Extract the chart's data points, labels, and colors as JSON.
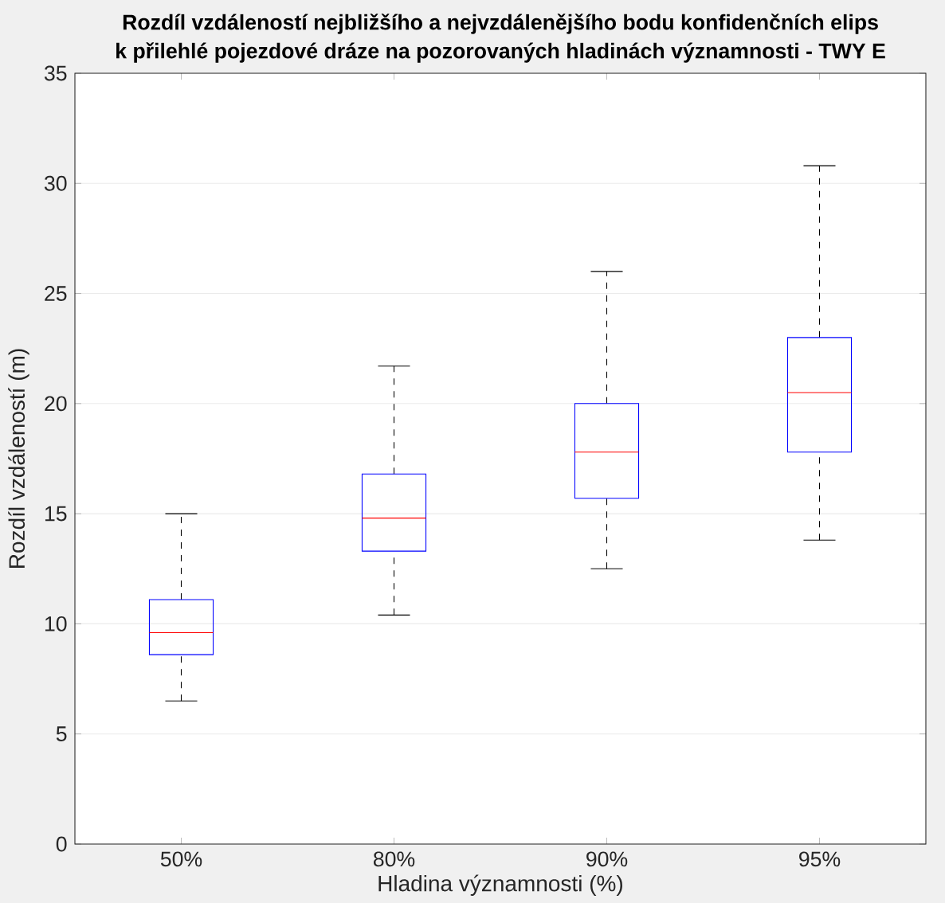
{
  "chart_data": {
    "type": "box",
    "title": "Rozdíl vzdáleností nejbližšího a nejvzdálenějšího bodu konfidenčních elips",
    "subtitle": "k přilehlé pojezdové dráze na pozorovaných hladinách významnosti - TWY E",
    "xlabel": "Hladina významnosti (%)",
    "ylabel": "Rozdíl vzdáleností (m)",
    "categories": [
      "50%",
      "80%",
      "90%",
      "95%"
    ],
    "series": [
      {
        "color": "#0000ff",
        "boxes": [
          {
            "low": 6.5,
            "q1": 8.6,
            "median": 9.6,
            "q3": 11.1,
            "high": 15.0
          },
          {
            "low": 10.4,
            "q1": 13.3,
            "median": 14.8,
            "q3": 16.8,
            "high": 21.7
          },
          {
            "low": 12.5,
            "q1": 15.7,
            "median": 17.8,
            "q3": 20.0,
            "high": 26.0
          },
          {
            "low": 13.8,
            "q1": 17.8,
            "median": 20.5,
            "q3": 23.0,
            "high": 30.8
          }
        ]
      }
    ],
    "ylim": [
      0,
      35
    ],
    "yticks": [
      0,
      5,
      10,
      15,
      20,
      25,
      30,
      35
    ],
    "grid": "y"
  }
}
